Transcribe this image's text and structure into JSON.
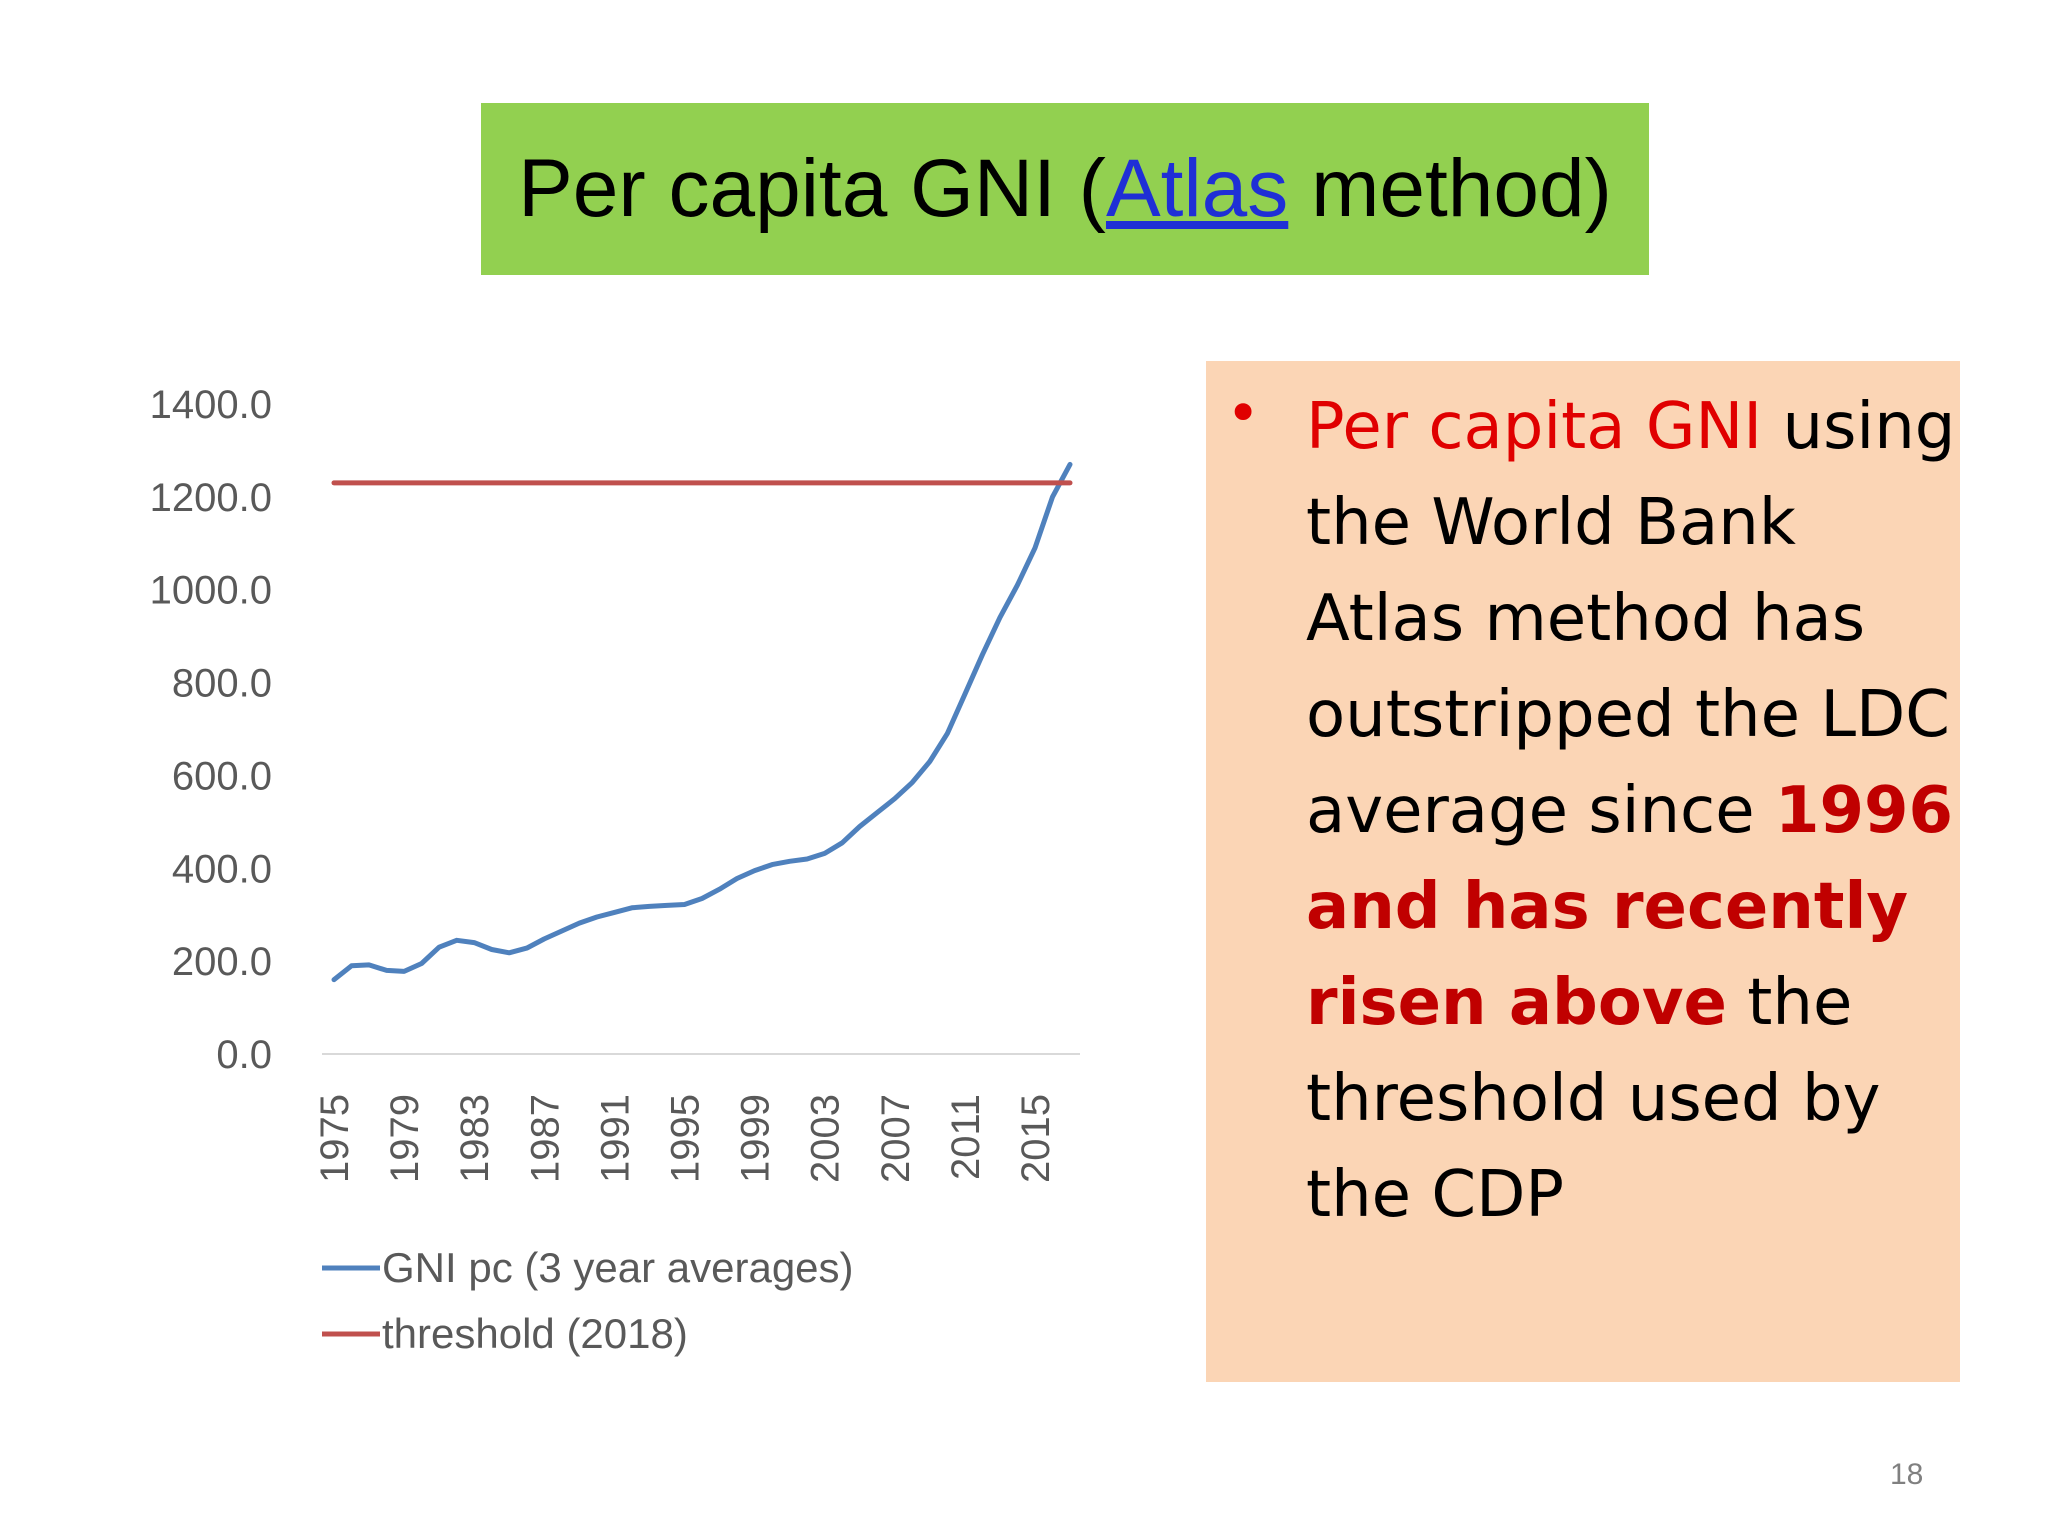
{
  "slide": {
    "title_before": "Per capita GNI (",
    "title_link": "Atlas",
    "title_after": " method)",
    "bullet": {
      "part1": "Per capita GNI",
      "part2": " using the World Bank Atlas method has outstripped the LDC average since ",
      "part3": "1996 and has recently risen above",
      "part4": " the threshold used by the CDP"
    },
    "page_number": "18",
    "colors": {
      "title_bg": "#92d050",
      "text_box_bg": "#fbd5b5",
      "link": "#1f2fd6",
      "bullet_red": "#e00000",
      "bold_red": "#c00000"
    }
  },
  "chart_data": {
    "type": "line",
    "title": "",
    "xlabel": "",
    "ylabel": "",
    "ylim": [
      0,
      1400
    ],
    "yticks": [
      "0.0",
      "200.0",
      "400.0",
      "600.0",
      "800.0",
      "1000.0",
      "1200.0",
      "1400.0"
    ],
    "xticks": [
      "1975",
      "1979",
      "1983",
      "1987",
      "1991",
      "1995",
      "1999",
      "2003",
      "2007",
      "2011",
      "2015"
    ],
    "x": [
      1975,
      1976,
      1977,
      1978,
      1979,
      1980,
      1981,
      1982,
      1983,
      1984,
      1985,
      1986,
      1987,
      1988,
      1989,
      1990,
      1991,
      1992,
      1993,
      1994,
      1995,
      1996,
      1997,
      1998,
      1999,
      2000,
      2001,
      2002,
      2003,
      2004,
      2005,
      2006,
      2007,
      2008,
      2009,
      2010,
      2011,
      2012,
      2013,
      2014,
      2015,
      2016,
      2017
    ],
    "legend_position": "bottom-left",
    "series": [
      {
        "name": "GNI pc (3 year averages)",
        "color": "#4f81bd",
        "values": [
          160,
          190,
          192,
          180,
          178,
          195,
          230,
          245,
          240,
          225,
          218,
          228,
          248,
          265,
          282,
          295,
          305,
          315,
          318,
          320,
          322,
          335,
          355,
          378,
          395,
          408,
          415,
          420,
          432,
          455,
          490,
          520,
          550,
          585,
          630,
          690,
          775,
          860,
          940,
          1010,
          1090,
          1200,
          1270
        ]
      },
      {
        "name": "threshold (2018)",
        "color": "#c0504d",
        "values": [
          1230,
          1230,
          1230,
          1230,
          1230,
          1230,
          1230,
          1230,
          1230,
          1230,
          1230,
          1230,
          1230,
          1230,
          1230,
          1230,
          1230,
          1230,
          1230,
          1230,
          1230,
          1230,
          1230,
          1230,
          1230,
          1230,
          1230,
          1230,
          1230,
          1230,
          1230,
          1230,
          1230,
          1230,
          1230,
          1230,
          1230,
          1230,
          1230,
          1230,
          1230,
          1230,
          1230
        ]
      }
    ]
  }
}
